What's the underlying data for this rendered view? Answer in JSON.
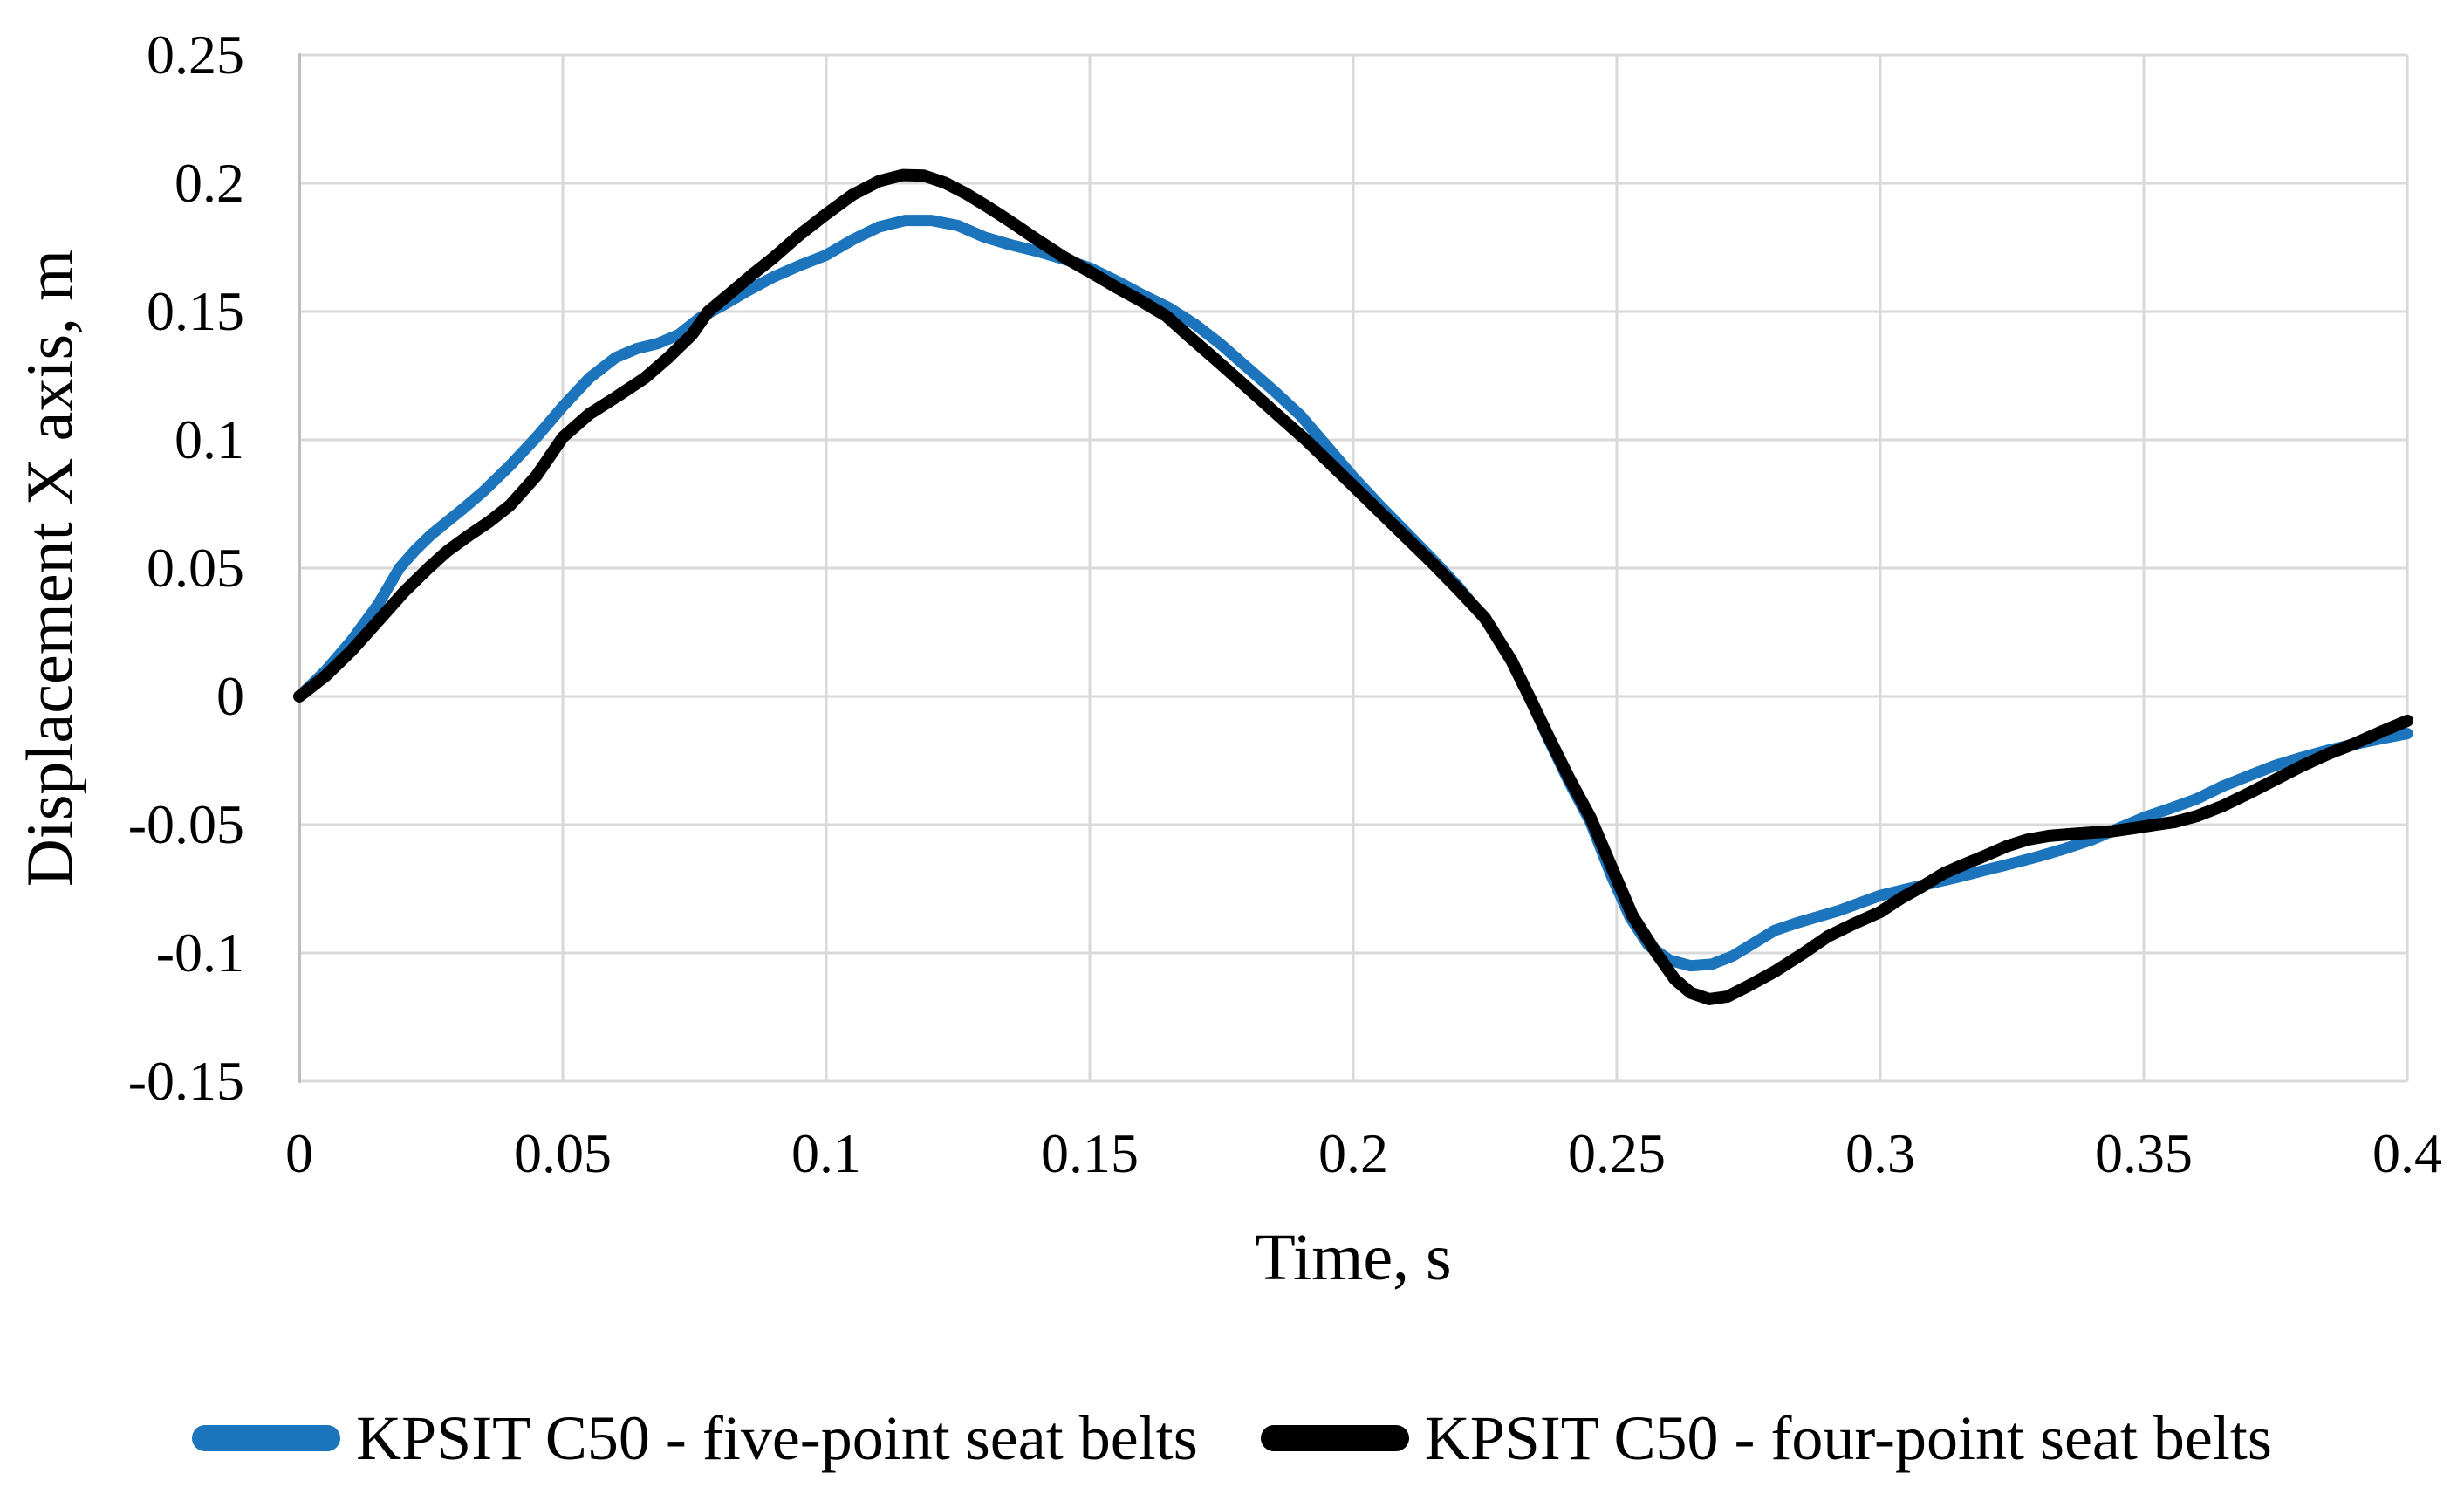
{
  "chart_data": {
    "type": "line",
    "title": "",
    "xlabel": "Time, s",
    "ylabel": "Displacement X axis, m",
    "xlim": [
      0,
      0.4
    ],
    "ylim": [
      -0.15,
      0.25
    ],
    "grid": true,
    "legend_position": "bottom",
    "grid_color": "#D9D9D9",
    "axis_line_color": "#BFBFBF",
    "background_color": "#FFFFFF",
    "x_ticks": [
      {
        "value": 0,
        "label": "0"
      },
      {
        "value": 0.05,
        "label": "0.05"
      },
      {
        "value": 0.1,
        "label": "0.1"
      },
      {
        "value": 0.15,
        "label": "0.15"
      },
      {
        "value": 0.2,
        "label": "0.2"
      },
      {
        "value": 0.25,
        "label": "0.25"
      },
      {
        "value": 0.3,
        "label": "0.3"
      },
      {
        "value": 0.35,
        "label": "0.35"
      },
      {
        "value": 0.4,
        "label": "0.4"
      }
    ],
    "y_ticks": [
      {
        "value": 0.25,
        "label": "0.25"
      },
      {
        "value": 0.2,
        "label": "0.2"
      },
      {
        "value": 0.15,
        "label": "0.15"
      },
      {
        "value": 0.1,
        "label": "0.1"
      },
      {
        "value": 0.05,
        "label": "0.05"
      },
      {
        "value": 0,
        "label": "0"
      },
      {
        "value": -0.05,
        "label": "-0.05"
      },
      {
        "value": -0.1,
        "label": "-0.1"
      },
      {
        "value": -0.15,
        "label": "-0.15"
      }
    ],
    "series": [
      {
        "name": "KPSIT C50 - five-point seat belts",
        "color": "#1C75BC",
        "line_width": 13,
        "points": [
          [
            0,
            0
          ],
          [
            0.005,
            0.01
          ],
          [
            0.01,
            0.022
          ],
          [
            0.015,
            0.036
          ],
          [
            0.019,
            0.05
          ],
          [
            0.022,
            0.057
          ],
          [
            0.025,
            0.063
          ],
          [
            0.028,
            0.068
          ],
          [
            0.031,
            0.073
          ],
          [
            0.035,
            0.08
          ],
          [
            0.04,
            0.09
          ],
          [
            0.045,
            0.101
          ],
          [
            0.05,
            0.113
          ],
          [
            0.055,
            0.124
          ],
          [
            0.06,
            0.132
          ],
          [
            0.064,
            0.1355
          ],
          [
            0.068,
            0.1375
          ],
          [
            0.072,
            0.141
          ],
          [
            0.076,
            0.1475
          ],
          [
            0.08,
            0.152
          ],
          [
            0.085,
            0.158
          ],
          [
            0.09,
            0.1635
          ],
          [
            0.095,
            0.168
          ],
          [
            0.1,
            0.172
          ],
          [
            0.105,
            0.178
          ],
          [
            0.11,
            0.183
          ],
          [
            0.115,
            0.1855
          ],
          [
            0.12,
            0.1855
          ],
          [
            0.125,
            0.1835
          ],
          [
            0.13,
            0.179
          ],
          [
            0.135,
            0.176
          ],
          [
            0.14,
            0.1735
          ],
          [
            0.145,
            0.1705
          ],
          [
            0.15,
            0.167
          ],
          [
            0.155,
            0.162
          ],
          [
            0.16,
            0.1565
          ],
          [
            0.165,
            0.1515
          ],
          [
            0.17,
            0.145
          ],
          [
            0.175,
            0.137
          ],
          [
            0.18,
            0.128
          ],
          [
            0.185,
            0.119
          ],
          [
            0.19,
            0.1095
          ],
          [
            0.195,
            0.0975
          ],
          [
            0.2,
            0.0855
          ],
          [
            0.205,
            0.0745
          ],
          [
            0.21,
            0.064
          ],
          [
            0.215,
            0.0535
          ],
          [
            0.22,
            0.0425
          ],
          [
            0.225,
            0.03
          ],
          [
            0.23,
            0.0145
          ],
          [
            0.233,
            0.0015
          ],
          [
            0.237,
            -0.0165
          ],
          [
            0.241,
            -0.0335
          ],
          [
            0.245,
            -0.049
          ],
          [
            0.249,
            -0.07
          ],
          [
            0.2525,
            -0.086
          ],
          [
            0.256,
            -0.097
          ],
          [
            0.26,
            -0.1028
          ],
          [
            0.264,
            -0.105
          ],
          [
            0.268,
            -0.1044
          ],
          [
            0.272,
            -0.1012
          ],
          [
            0.276,
            -0.0962
          ],
          [
            0.28,
            -0.0912
          ],
          [
            0.284,
            -0.0884
          ],
          [
            0.288,
            -0.086
          ],
          [
            0.292,
            -0.0836
          ],
          [
            0.296,
            -0.0806
          ],
          [
            0.3,
            -0.0776
          ],
          [
            0.305,
            -0.0751
          ],
          [
            0.31,
            -0.0727
          ],
          [
            0.315,
            -0.0703
          ],
          [
            0.32,
            -0.0677
          ],
          [
            0.325,
            -0.0651
          ],
          [
            0.33,
            -0.0624
          ],
          [
            0.335,
            -0.0594
          ],
          [
            0.34,
            -0.056
          ],
          [
            0.345,
            -0.0516
          ],
          [
            0.35,
            -0.0472
          ],
          [
            0.355,
            -0.0437
          ],
          [
            0.36,
            -0.04
          ],
          [
            0.365,
            -0.035
          ],
          [
            0.37,
            -0.0309
          ],
          [
            0.375,
            -0.0269
          ],
          [
            0.38,
            -0.0238
          ],
          [
            0.385,
            -0.021
          ],
          [
            0.39,
            -0.0186
          ],
          [
            0.395,
            -0.0165
          ],
          [
            0.4,
            -0.0145
          ]
        ]
      },
      {
        "name": "KPSIT C50 - four-point seat belts",
        "color": "#000000",
        "line_width": 14,
        "points": [
          [
            0,
            0
          ],
          [
            0.005,
            0.008
          ],
          [
            0.01,
            0.018
          ],
          [
            0.015,
            0.0295
          ],
          [
            0.02,
            0.041
          ],
          [
            0.0245,
            0.05
          ],
          [
            0.028,
            0.0565
          ],
          [
            0.032,
            0.0625
          ],
          [
            0.036,
            0.068
          ],
          [
            0.04,
            0.0745
          ],
          [
            0.045,
            0.086
          ],
          [
            0.05,
            0.101
          ],
          [
            0.055,
            0.11
          ],
          [
            0.06,
            0.1165
          ],
          [
            0.0655,
            0.124
          ],
          [
            0.07,
            0.132
          ],
          [
            0.0745,
            0.141
          ],
          [
            0.0776,
            0.15
          ],
          [
            0.082,
            0.1575
          ],
          [
            0.086,
            0.1645
          ],
          [
            0.09,
            0.171
          ],
          [
            0.095,
            0.18
          ],
          [
            0.1,
            0.188
          ],
          [
            0.105,
            0.1955
          ],
          [
            0.11,
            0.2008
          ],
          [
            0.1145,
            0.2032
          ],
          [
            0.1185,
            0.203
          ],
          [
            0.1225,
            0.2002
          ],
          [
            0.1265,
            0.196
          ],
          [
            0.1305,
            0.191
          ],
          [
            0.135,
            0.185
          ],
          [
            0.14,
            0.178
          ],
          [
            0.145,
            0.1713
          ],
          [
            0.15,
            0.1655
          ],
          [
            0.155,
            0.1595
          ],
          [
            0.16,
            0.1538
          ],
          [
            0.1645,
            0.1483
          ],
          [
            0.169,
            0.14
          ],
          [
            0.1735,
            0.132
          ],
          [
            0.178,
            0.1238
          ],
          [
            0.1825,
            0.1155
          ],
          [
            0.187,
            0.1072
          ],
          [
            0.191,
            0.1
          ],
          [
            0.195,
            0.092
          ],
          [
            0.2,
            0.082
          ],
          [
            0.205,
            0.072
          ],
          [
            0.21,
            0.062
          ],
          [
            0.215,
            0.052
          ],
          [
            0.22,
            0.0415
          ],
          [
            0.225,
            0.0305
          ],
          [
            0.23,
            0.014
          ],
          [
            0.2335,
            -0.0005
          ],
          [
            0.237,
            -0.0155
          ],
          [
            0.241,
            -0.032
          ],
          [
            0.245,
            -0.0472
          ],
          [
            0.249,
            -0.0665
          ],
          [
            0.253,
            -0.0855
          ],
          [
            0.2575,
            -0.1
          ],
          [
            0.261,
            -0.1102
          ],
          [
            0.264,
            -0.1155
          ],
          [
            0.2675,
            -0.118
          ],
          [
            0.271,
            -0.117
          ],
          [
            0.275,
            -0.1128
          ],
          [
            0.28,
            -0.1072
          ],
          [
            0.2855,
            -0.1
          ],
          [
            0.29,
            -0.0936
          ],
          [
            0.295,
            -0.0886
          ],
          [
            0.3,
            -0.084
          ],
          [
            0.304,
            -0.0786
          ],
          [
            0.308,
            -0.074
          ],
          [
            0.312,
            -0.069
          ],
          [
            0.316,
            -0.0654
          ],
          [
            0.32,
            -0.062
          ],
          [
            0.324,
            -0.0584
          ],
          [
            0.328,
            -0.0558
          ],
          [
            0.332,
            -0.0544
          ],
          [
            0.336,
            -0.0537
          ],
          [
            0.34,
            -0.0531
          ],
          [
            0.344,
            -0.0526
          ],
          [
            0.348,
            -0.0514
          ],
          [
            0.352,
            -0.0501
          ],
          [
            0.356,
            -0.0489
          ],
          [
            0.36,
            -0.0467
          ],
          [
            0.365,
            -0.0427
          ],
          [
            0.37,
            -0.0377
          ],
          [
            0.375,
            -0.0324
          ],
          [
            0.38,
            -0.0271
          ],
          [
            0.385,
            -0.0224
          ],
          [
            0.39,
            -0.0184
          ],
          [
            0.395,
            -0.0138
          ],
          [
            0.4,
            -0.0095
          ]
        ]
      }
    ]
  }
}
